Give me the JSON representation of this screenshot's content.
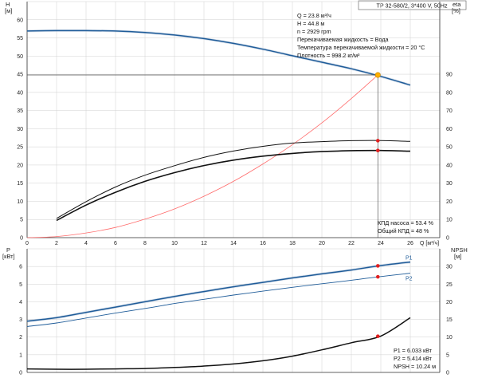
{
  "header": {
    "model": "TP 32-580/2, 3*400 V, 50Hz"
  },
  "info_lines": [
    "Q = 23.8 м³/ч",
    "H = 44.8 м",
    "n = 2929 rpm",
    "Перекачиваемая жидкость = Вода",
    "Температура перекачиваемой жидкости = 20 °C",
    "Плотность = 998.2 кг/м³"
  ],
  "efficiency_info": [
    "КПД насоса = 53.4 %",
    "Общий КПД = 48 %"
  ],
  "power_info": [
    "P1 = 6.033 кВт",
    "P2 = 5.414 кВт",
    "NPSH = 10.24 м"
  ],
  "colors": {
    "head_curve": "#1f5c99",
    "efficiency_curves": "#111111",
    "system_curve": "#ff6b6b",
    "power_curves": "#1f5c99",
    "npsh_curve": "#111111",
    "duty_point": "#ffb000",
    "marker": "#e02020",
    "grid": "#d0d0d0"
  },
  "chart_data": [
    {
      "type": "line",
      "title": "",
      "xlabel": "Q [м³/ч]",
      "ylabel_left": "H [м]",
      "ylabel_right": "eta [%]",
      "xlim": [
        0,
        28
      ],
      "x_ticks": [
        0,
        2,
        4,
        6,
        8,
        10,
        12,
        14,
        16,
        18,
        20,
        22,
        24,
        26
      ],
      "ylim_left": [
        0,
        65
      ],
      "y_ticks_left": [
        0,
        5,
        10,
        15,
        20,
        25,
        30,
        35,
        40,
        45,
        50,
        55,
        60
      ],
      "ylim_right": [
        0,
        130
      ],
      "y_ticks_right": [
        0,
        10,
        20,
        30,
        40,
        50,
        60,
        70,
        80,
        90
      ],
      "grid": true,
      "series": [
        {
          "axis": "left",
          "x": [
            0,
            2,
            4,
            6,
            8,
            10,
            12,
            14,
            16,
            18,
            20,
            22,
            24,
            26
          ],
          "y": [
            56.9,
            57.0,
            57.0,
            56.9,
            56.5,
            55.8,
            54.8,
            53.5,
            51.9,
            50.1,
            48.3,
            46.5,
            44.4,
            42.0
          ]
        },
        {
          "axis": "right",
          "x": [
            2,
            4,
            6,
            8,
            10,
            12,
            14,
            16,
            18,
            20,
            22,
            24,
            26
          ],
          "y": [
            10.6,
            19.8,
            27.9,
            34.4,
            39.6,
            44.2,
            47.7,
            50.3,
            52.1,
            52.9,
            53.4,
            53.5,
            53.0
          ]
        },
        {
          "axis": "right",
          "x": [
            2,
            4,
            6,
            8,
            10,
            12,
            14,
            16,
            18,
            20,
            22,
            24,
            26
          ],
          "y": [
            9.5,
            17.9,
            25.0,
            31.0,
            35.8,
            39.7,
            42.7,
            44.9,
            46.4,
            47.4,
            47.9,
            48.0,
            47.6
          ]
        },
        {
          "axis": "left",
          "x": [
            0,
            2,
            4,
            6,
            8,
            10,
            12,
            14,
            16,
            18,
            20,
            22,
            23.8
          ],
          "y": [
            0,
            0.3,
            1.3,
            2.8,
            5.1,
            7.9,
            11.4,
            15.5,
            20.3,
            25.6,
            31.6,
            38.3,
            44.8
          ]
        }
      ],
      "duty_point": {
        "x": 23.8,
        "y": 44.8
      },
      "markers": [
        {
          "axis": "right",
          "x": 23.8,
          "y": 53.4
        },
        {
          "axis": "right",
          "x": 23.8,
          "y": 48.0
        }
      ]
    },
    {
      "type": "line",
      "title": "",
      "ylabel_left": "P [кВт]",
      "ylabel_right": "NPSH [м]",
      "xlim": [
        0,
        28
      ],
      "ylim_left": [
        0,
        7
      ],
      "y_ticks_left": [
        0,
        1,
        2,
        3,
        4,
        5,
        6
      ],
      "ylim_right": [
        0,
        35
      ],
      "y_ticks_right": [
        0,
        5,
        10,
        15,
        20,
        25,
        30
      ],
      "grid": true,
      "series": [
        {
          "name": "P1",
          "axis": "left",
          "x": [
            0,
            2,
            4,
            6,
            8,
            10,
            12,
            14,
            16,
            18,
            20,
            22,
            24,
            26
          ],
          "y": [
            2.9,
            3.1,
            3.4,
            3.7,
            4.0,
            4.3,
            4.58,
            4.85,
            5.1,
            5.35,
            5.58,
            5.8,
            6.05,
            6.25
          ]
        },
        {
          "name": "P2",
          "axis": "left",
          "x": [
            0,
            2,
            4,
            6,
            8,
            10,
            12,
            14,
            16,
            18,
            20,
            22,
            24,
            26
          ],
          "y": [
            2.6,
            2.8,
            3.08,
            3.36,
            3.62,
            3.9,
            4.14,
            4.38,
            4.6,
            4.82,
            5.02,
            5.22,
            5.43,
            5.62
          ]
        },
        {
          "name": "NPSH",
          "axis": "right",
          "x": [
            0,
            2,
            4,
            6,
            8,
            10,
            12,
            14,
            16,
            18,
            20,
            22,
            24,
            26
          ],
          "y": [
            1.0,
            0.9,
            0.9,
            1.0,
            1.1,
            1.4,
            1.8,
            2.4,
            3.3,
            4.6,
            6.4,
            8.4,
            10.3,
            15.5
          ]
        }
      ],
      "markers": [
        {
          "axis": "left",
          "x": 23.8,
          "y": 6.033
        },
        {
          "axis": "left",
          "x": 23.8,
          "y": 5.414
        },
        {
          "axis": "right",
          "x": 23.8,
          "y": 10.24
        }
      ]
    }
  ]
}
